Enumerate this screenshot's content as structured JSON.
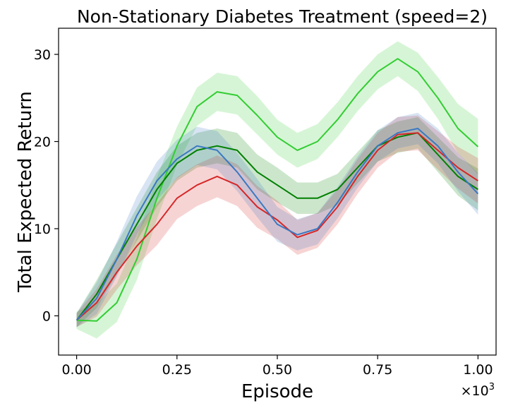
{
  "chart_data": {
    "type": "line",
    "title": "Non-Stationary Diabetes Treatment (speed=2)",
    "xlabel": "Episode",
    "ylabel": "Total Expected Return",
    "x_multiplier_label": "×10",
    "x_multiplier_exponent": "3",
    "xlim": [
      -0.045,
      1.045
    ],
    "ylim": [
      -4.5,
      33.0
    ],
    "xticks": [
      0.0,
      0.25,
      0.5,
      0.75,
      1.0
    ],
    "xtick_labels": [
      "0.00",
      "0.25",
      "0.50",
      "0.75",
      "1.00"
    ],
    "yticks": [
      0,
      10,
      20,
      30
    ],
    "ytick_labels": [
      "0",
      "10",
      "20",
      "30"
    ],
    "grid": false,
    "legend": "none",
    "x": [
      0.0,
      0.05,
      0.1,
      0.15,
      0.2,
      0.25,
      0.3,
      0.35,
      0.4,
      0.45,
      0.5,
      0.55,
      0.6,
      0.65,
      0.7,
      0.75,
      0.8,
      0.85,
      0.9,
      0.95,
      1.0
    ],
    "series": [
      {
        "name": "lime series",
        "color": "#32cd32",
        "values": [
          -0.5,
          -0.6,
          1.5,
          6.5,
          13.5,
          19.5,
          24.0,
          25.7,
          25.3,
          23.0,
          20.5,
          19.0,
          20.0,
          22.5,
          25.5,
          28.0,
          29.5,
          28.0,
          25.0,
          21.5,
          19.4
        ],
        "band": [
          1.0,
          2.0,
          2.2,
          2.4,
          2.4,
          2.2,
          2.2,
          2.2,
          2.2,
          2.2,
          2.0,
          2.0,
          2.0,
          2.0,
          2.0,
          2.0,
          2.0,
          2.2,
          2.4,
          2.8,
          3.2
        ]
      },
      {
        "name": "dark green series",
        "color": "#008000",
        "values": [
          -0.5,
          2.5,
          6.5,
          10.5,
          14.5,
          17.5,
          19.0,
          19.5,
          19.0,
          16.5,
          15.0,
          13.5,
          13.5,
          14.5,
          17.0,
          19.5,
          20.5,
          21.0,
          18.5,
          16.0,
          14.5
        ],
        "band": [
          0.8,
          1.6,
          1.8,
          1.9,
          2.0,
          2.0,
          2.0,
          2.0,
          2.0,
          2.0,
          2.0,
          1.8,
          1.8,
          1.8,
          1.8,
          1.8,
          1.8,
          1.8,
          2.0,
          2.2,
          2.4
        ]
      },
      {
        "name": "red series",
        "color": "#d62728",
        "values": [
          -0.5,
          1.5,
          5.0,
          8.0,
          10.5,
          13.5,
          15.0,
          16.0,
          15.0,
          12.5,
          11.0,
          9.0,
          9.8,
          12.5,
          16.0,
          19.0,
          20.8,
          21.0,
          19.0,
          17.0,
          15.5
        ],
        "band": [
          0.8,
          1.6,
          2.0,
          2.2,
          2.4,
          2.4,
          2.4,
          2.4,
          2.4,
          2.4,
          2.2,
          2.0,
          2.0,
          2.0,
          2.0,
          2.0,
          2.0,
          2.0,
          2.2,
          2.4,
          2.6
        ]
      },
      {
        "name": "blue series",
        "color": "#3b78c2",
        "values": [
          -0.5,
          2.0,
          6.5,
          11.5,
          15.5,
          18.0,
          19.5,
          19.0,
          16.5,
          13.5,
          10.5,
          9.3,
          10.0,
          13.0,
          16.5,
          19.5,
          21.0,
          21.5,
          19.5,
          16.5,
          14.0
        ],
        "band": [
          0.8,
          1.8,
          2.0,
          2.2,
          2.2,
          2.2,
          2.2,
          2.2,
          2.2,
          2.2,
          2.0,
          1.8,
          1.8,
          1.8,
          1.8,
          1.8,
          1.8,
          1.8,
          2.0,
          2.2,
          2.4
        ]
      }
    ]
  }
}
